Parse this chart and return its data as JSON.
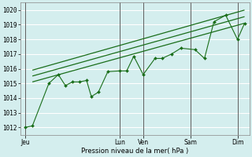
{
  "bg_color": "#d4eeee",
  "grid_color": "#ffffff",
  "line_color": "#1a6e1a",
  "marker_color": "#1a6e1a",
  "xlabel_text": "Pression niveau de la mer( hPa )",
  "ylim": [
    1011.5,
    1020.5
  ],
  "yticks": [
    1012,
    1013,
    1014,
    1015,
    1016,
    1017,
    1018,
    1019,
    1020
  ],
  "xtick_labels": [
    "Jeu",
    "",
    "",
    "",
    "Lun",
    "Ven",
    "",
    "Sam",
    "",
    "Dim"
  ],
  "xtick_positions": [
    0,
    1,
    2,
    3,
    4,
    5,
    6,
    7,
    8,
    9
  ],
  "xlim": [
    -0.2,
    9.5
  ],
  "vline_positions": [
    0,
    4,
    5,
    7,
    9
  ],
  "vline_color": "#444444",
  "series_main": {
    "x": [
      0,
      0.3,
      1.0,
      1.4,
      1.7,
      2.0,
      2.3,
      2.6,
      2.8,
      3.1,
      3.5,
      4.0,
      4.3,
      4.6,
      5.0,
      5.5,
      5.8,
      6.2,
      6.6,
      7.2,
      7.6,
      8.0,
      8.5,
      9.0,
      9.3
    ],
    "y": [
      1012.0,
      1012.1,
      1015.0,
      1015.6,
      1014.85,
      1015.1,
      1015.1,
      1015.2,
      1014.1,
      1014.4,
      1015.8,
      1015.85,
      1015.85,
      1016.85,
      1015.6,
      1016.7,
      1016.7,
      1017.0,
      1017.4,
      1017.3,
      1016.7,
      1019.2,
      1019.65,
      1018.0,
      1019.1
    ]
  },
  "smooth_lines": [
    {
      "x": [
        0.3,
        9.3
      ],
      "y": [
        1015.1,
        1019.1
      ]
    },
    {
      "x": [
        0.3,
        9.3
      ],
      "y": [
        1015.5,
        1019.55
      ]
    },
    {
      "x": [
        0.3,
        9.3
      ],
      "y": [
        1015.9,
        1020.0
      ]
    }
  ]
}
